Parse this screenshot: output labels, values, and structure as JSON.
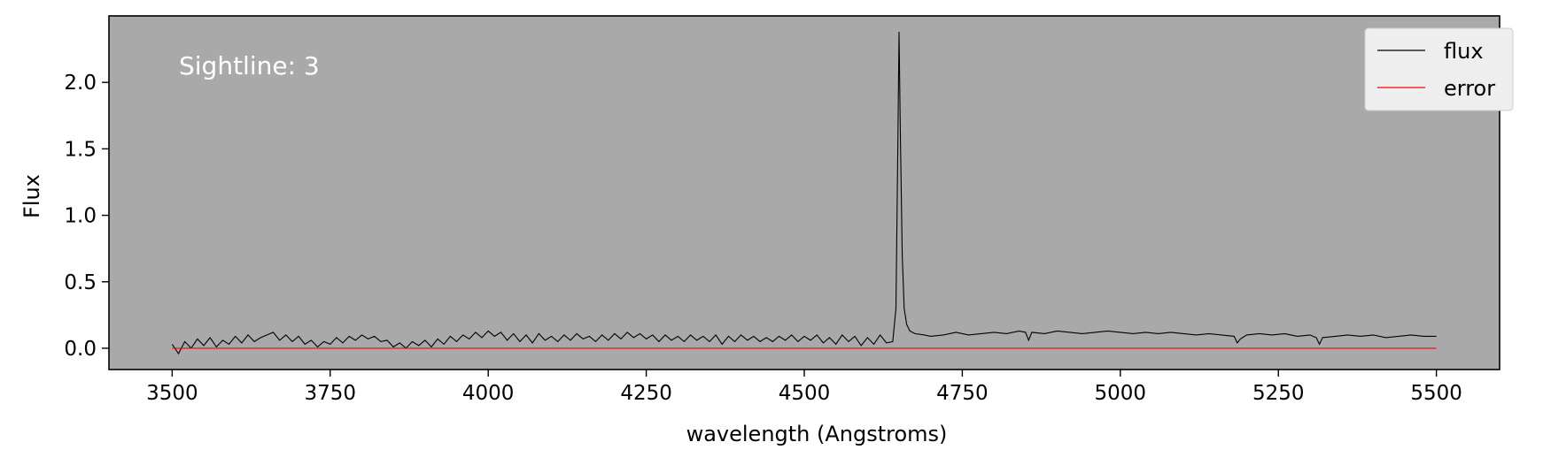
{
  "chart_data": {
    "type": "line",
    "annotation": "Sightline: 3",
    "xlabel": "wavelength (Angstroms)",
    "ylabel": "Flux",
    "xlim": [
      3400,
      5600
    ],
    "ylim": [
      -0.16,
      2.5
    ],
    "x_ticks": [
      3500,
      3750,
      4000,
      4250,
      4500,
      4750,
      5000,
      5250,
      5500
    ],
    "x_tick_labels": [
      "3500",
      "3750",
      "4000",
      "4250",
      "4500",
      "4750",
      "5000",
      "5250",
      "5500"
    ],
    "y_ticks": [
      0.0,
      0.5,
      1.0,
      1.5,
      2.0
    ],
    "y_tick_labels": [
      "0.0",
      "0.5",
      "1.0",
      "1.5",
      "2.0"
    ],
    "grid": false,
    "legend_position": "top-right",
    "background_color": "#a9a9a9",
    "series": [
      {
        "name": "flux",
        "color": "#000000",
        "x": [
          3500,
          3510,
          3520,
          3530,
          3540,
          3550,
          3560,
          3570,
          3580,
          3590,
          3600,
          3610,
          3620,
          3630,
          3640,
          3650,
          3660,
          3670,
          3680,
          3690,
          3700,
          3710,
          3720,
          3730,
          3740,
          3750,
          3760,
          3770,
          3780,
          3790,
          3800,
          3810,
          3820,
          3830,
          3840,
          3850,
          3860,
          3870,
          3880,
          3890,
          3900,
          3910,
          3920,
          3930,
          3940,
          3950,
          3960,
          3970,
          3980,
          3990,
          4000,
          4010,
          4020,
          4030,
          4040,
          4050,
          4060,
          4070,
          4080,
          4090,
          4100,
          4110,
          4120,
          4130,
          4140,
          4150,
          4160,
          4170,
          4180,
          4190,
          4200,
          4210,
          4220,
          4230,
          4240,
          4250,
          4260,
          4270,
          4280,
          4290,
          4300,
          4310,
          4320,
          4330,
          4340,
          4350,
          4360,
          4370,
          4380,
          4390,
          4400,
          4410,
          4420,
          4430,
          4440,
          4450,
          4460,
          4470,
          4480,
          4490,
          4500,
          4510,
          4520,
          4530,
          4540,
          4550,
          4560,
          4570,
          4580,
          4590,
          4600,
          4610,
          4620,
          4630,
          4640,
          4645,
          4648,
          4650,
          4652,
          4655,
          4658,
          4662,
          4667,
          4675,
          4690,
          4700,
          4720,
          4740,
          4760,
          4780,
          4800,
          4820,
          4840,
          4850,
          4855,
          4860,
          4880,
          4900,
          4920,
          4940,
          4960,
          4980,
          5000,
          5020,
          5040,
          5060,
          5080,
          5100,
          5120,
          5140,
          5160,
          5180,
          5185,
          5190,
          5200,
          5220,
          5240,
          5260,
          5280,
          5300,
          5310,
          5315,
          5320,
          5340,
          5360,
          5380,
          5400,
          5420,
          5440,
          5460,
          5480,
          5500
        ],
        "y": [
          0.03,
          -0.04,
          0.05,
          0.0,
          0.07,
          0.02,
          0.08,
          0.01,
          0.06,
          0.03,
          0.09,
          0.04,
          0.1,
          0.05,
          0.08,
          0.1,
          0.12,
          0.06,
          0.1,
          0.05,
          0.09,
          0.03,
          0.06,
          0.01,
          0.05,
          0.03,
          0.08,
          0.04,
          0.09,
          0.06,
          0.1,
          0.07,
          0.09,
          0.05,
          0.06,
          0.01,
          0.04,
          0.0,
          0.05,
          0.02,
          0.06,
          0.01,
          0.07,
          0.03,
          0.09,
          0.05,
          0.1,
          0.07,
          0.12,
          0.08,
          0.13,
          0.09,
          0.12,
          0.06,
          0.11,
          0.05,
          0.1,
          0.04,
          0.11,
          0.06,
          0.09,
          0.05,
          0.1,
          0.06,
          0.11,
          0.07,
          0.09,
          0.05,
          0.1,
          0.06,
          0.11,
          0.07,
          0.12,
          0.08,
          0.11,
          0.07,
          0.1,
          0.05,
          0.1,
          0.06,
          0.09,
          0.05,
          0.1,
          0.06,
          0.09,
          0.05,
          0.1,
          0.03,
          0.09,
          0.05,
          0.1,
          0.06,
          0.09,
          0.05,
          0.08,
          0.05,
          0.09,
          0.06,
          0.1,
          0.05,
          0.09,
          0.06,
          0.1,
          0.04,
          0.08,
          0.03,
          0.1,
          0.05,
          0.09,
          0.02,
          0.08,
          0.03,
          0.1,
          0.04,
          0.05,
          0.3,
          1.5,
          2.38,
          1.6,
          0.7,
          0.3,
          0.18,
          0.13,
          0.11,
          0.1,
          0.09,
          0.1,
          0.12,
          0.1,
          0.11,
          0.12,
          0.11,
          0.13,
          0.12,
          0.06,
          0.12,
          0.11,
          0.13,
          0.12,
          0.11,
          0.12,
          0.13,
          0.12,
          0.11,
          0.12,
          0.11,
          0.12,
          0.11,
          0.1,
          0.11,
          0.1,
          0.09,
          0.04,
          0.07,
          0.1,
          0.11,
          0.1,
          0.11,
          0.09,
          0.1,
          0.08,
          0.03,
          0.08,
          0.09,
          0.1,
          0.09,
          0.1,
          0.08,
          0.09,
          0.1,
          0.09,
          0.09
        ]
      },
      {
        "name": "error",
        "color": "#ff0000",
        "x": [
          3500,
          5500
        ],
        "y": [
          0.0,
          0.0
        ]
      }
    ]
  }
}
